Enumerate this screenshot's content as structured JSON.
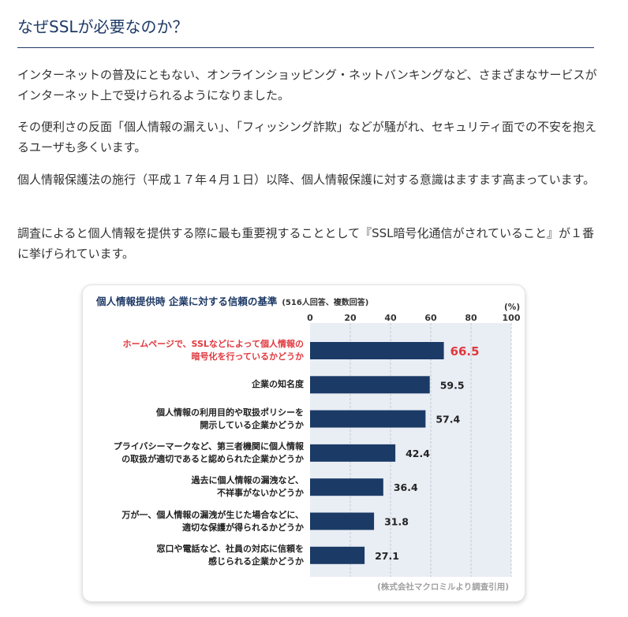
{
  "page": {
    "heading": "なぜSSLが必要なのか？",
    "paragraphs": [
      "インターネットの普及にともない、オンラインショッピング・ネットバンキングなど、さまざまなサービスがインターネット上で受けられるようになりました。",
      "その便利さの反面「個人情報の漏えい」、「フィッシング詐欺」などが騒がれ、セキュリティ面での不安を抱えるユーザも多くいます。",
      "個人情報保護法の施行（平成１７年４月１日）以降、個人情報保護に対する意識はますます高まっています。",
      "調査によると個人情報を提供する際に最も重要視することとして『SSL暗号化通信がされていること』が１番に挙げられています。"
    ]
  },
  "chart_data": {
    "type": "bar",
    "orientation": "horizontal",
    "title": "個人情報提供時 企業に対する信頼の基準",
    "subtitle": "(516人回答、複数回答)",
    "unit": "(%)",
    "xlim": [
      0,
      100
    ],
    "ticks": [
      "0",
      "20",
      "40",
      "60",
      "80",
      "100"
    ],
    "categories": [
      [
        "ホームページで、SSLなどによって個人情報の",
        "暗号化を行っているかどうか"
      ],
      [
        "企業の知名度"
      ],
      [
        "個人情報の利用目的や取扱ポリシーを",
        "開示している企業かどうか"
      ],
      [
        "プライバシーマークなど、第三者機関に個人情報",
        "の取扱が適切であると認められた企業かどうか"
      ],
      [
        "過去に個人情報の漏洩など、",
        "不祥事がないかどうか"
      ],
      [
        "万が一、個人情報の漏洩が生じた場合などに、",
        "適切な保護が得られるかどうか"
      ],
      [
        "窓口や電話など、社員の対応に信頼を",
        "感じられる企業かどうか"
      ]
    ],
    "values": [
      66.5,
      59.5,
      57.4,
      42.4,
      36.4,
      31.8,
      27.1
    ],
    "value_labels": [
      "66.5",
      "59.5",
      "57.4",
      "42.4",
      "36.4",
      "31.8",
      "27.1"
    ],
    "highlight_index": 0,
    "source": "(株式会社マクロミルより調査引用)",
    "grid": true,
    "colors": {
      "bar": "#1b3a66",
      "plot_bg": "#e9edf4",
      "grid": "#c4cad6",
      "highlight_text": "#e0383e",
      "text": "#222222"
    }
  }
}
